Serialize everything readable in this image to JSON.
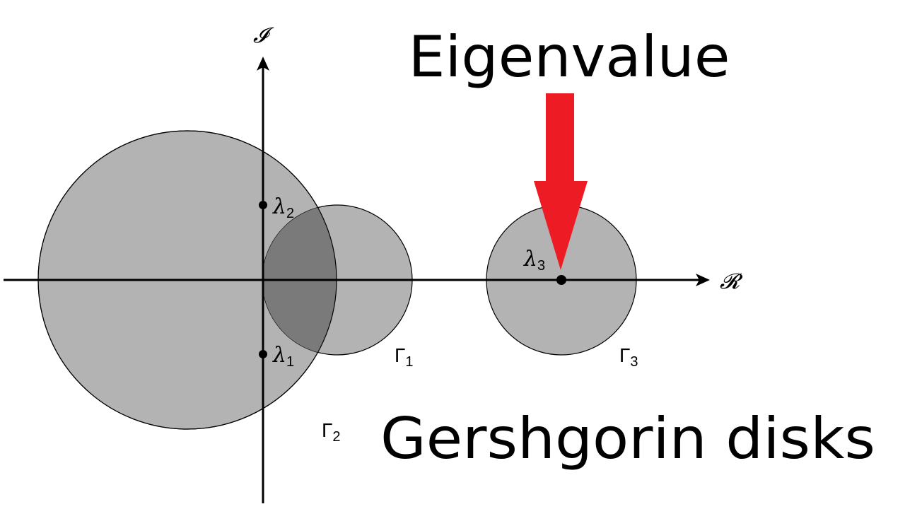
{
  "labels": {
    "title": "Eigenvalue",
    "caption": "Gershgorin disks",
    "imag_axis": "𝓘",
    "real_axis": "𝓡"
  },
  "disks": [
    {
      "id": "gamma-1",
      "symbol": "Γ",
      "index": "1"
    },
    {
      "id": "gamma-2",
      "symbol": "Γ",
      "index": "2"
    },
    {
      "id": "gamma-3",
      "symbol": "Γ",
      "index": "3"
    }
  ],
  "eigenvalues": [
    {
      "id": "lambda-1",
      "symbol": "λ",
      "index": "1"
    },
    {
      "id": "lambda-2",
      "symbol": "λ",
      "index": "2"
    },
    {
      "id": "lambda-3",
      "symbol": "λ",
      "index": "3"
    }
  ],
  "colors": {
    "disk_fill": "#b3b3b3",
    "overlap_fill": "#7a7a7a",
    "arrow": "#ed1c24",
    "ink": "#000000"
  }
}
